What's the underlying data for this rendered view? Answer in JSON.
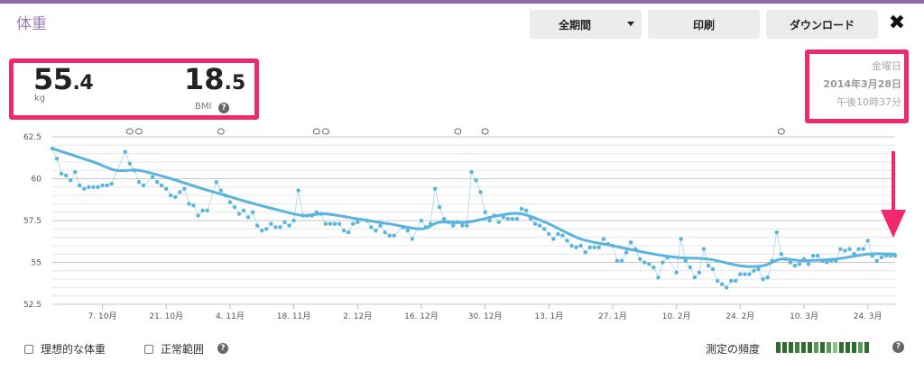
{
  "header": {
    "title": "体重",
    "period_button": "全期間",
    "print_button": "印刷",
    "download_button": "ダウンロード",
    "close_icon": "close-icon"
  },
  "summary": {
    "weight_int": "55",
    "weight_dec": ".4",
    "weight_unit": "kg",
    "bmi_int": "18",
    "bmi_dec": ".5",
    "bmi_label": "BMI",
    "help": "?"
  },
  "date": {
    "weekday": "金曜日",
    "date": "2014年3月28日",
    "time": "午後10時37分"
  },
  "legend": {
    "ideal_weight": "理想的な体重",
    "normal_range": "正常範囲",
    "help": "?",
    "frequency_label": "測定の頻度",
    "frequency_help": "?",
    "frequency_colors": [
      "#2e6b2e",
      "#2e6b2e",
      "#2e6b2e",
      "#3f7f3f",
      "#2e6b2e",
      "#2e6b2e",
      "#5c9a5c",
      "#2e6b2e",
      "#5c9a5c",
      "#8fc08f",
      "#2e6b2e",
      "#2e6b2e",
      "#2e6b2e",
      "#5c9a5c",
      "#2e6b2e"
    ]
  },
  "colors": {
    "accent": "#9b7cb8",
    "highlight": "#f0286e",
    "line": "#5ab4e0",
    "point": "#5ab4e0"
  },
  "chart_data": {
    "type": "line",
    "ylim": [
      52.5,
      62.5
    ],
    "yticks": [
      "62.5",
      "60",
      "57.5",
      "55",
      "52.5"
    ],
    "ytick_values": [
      62.5,
      60,
      57.5,
      55,
      52.5
    ],
    "x_start": "2013-09-26",
    "x_end": "2014-03-30",
    "xtick_labels": [
      "7. 10月",
      "21. 10月",
      "4. 11月",
      "18. 11月",
      "2. 12月",
      "16. 12月",
      "30. 12月",
      "13. 1月",
      "27. 1月",
      "10. 2月",
      "24. 2月",
      "10. 3月",
      "24. 3月"
    ],
    "xtick_dates": [
      "2013-10-07",
      "2013-10-21",
      "2013-11-04",
      "2013-11-18",
      "2013-12-02",
      "2013-12-16",
      "2013-12-30",
      "2014-01-13",
      "2014-01-27",
      "2014-02-10",
      "2014-02-24",
      "2014-03-10",
      "2014-03-24"
    ],
    "points": [
      [
        "2013-09-26",
        61.8
      ],
      [
        "2013-09-27",
        61.2
      ],
      [
        "2013-09-28",
        60.3
      ],
      [
        "2013-09-29",
        60.2
      ],
      [
        "2013-09-30",
        59.9
      ],
      [
        "2013-10-01",
        60.4
      ],
      [
        "2013-10-02",
        59.6
      ],
      [
        "2013-10-03",
        59.4
      ],
      [
        "2013-10-04",
        59.5
      ],
      [
        "2013-10-05",
        59.5
      ],
      [
        "2013-10-06",
        59.5
      ],
      [
        "2013-10-07",
        59.6
      ],
      [
        "2013-10-08",
        59.6
      ],
      [
        "2013-10-09",
        59.7
      ],
      [
        "2013-10-12",
        61.6
      ],
      [
        "2013-10-13",
        60.9
      ],
      [
        "2013-10-14",
        60.5
      ],
      [
        "2013-10-15",
        59.8
      ],
      [
        "2013-10-16",
        59.6
      ],
      [
        "2013-10-18",
        60.1
      ],
      [
        "2013-10-19",
        59.8
      ],
      [
        "2013-10-20",
        59.6
      ],
      [
        "2013-10-21",
        59.4
      ],
      [
        "2013-10-22",
        59.0
      ],
      [
        "2013-10-23",
        58.9
      ],
      [
        "2013-10-24",
        59.2
      ],
      [
        "2013-10-25",
        59.4
      ],
      [
        "2013-10-26",
        58.5
      ],
      [
        "2013-10-27",
        58.4
      ],
      [
        "2013-10-28",
        57.8
      ],
      [
        "2013-10-29",
        58.1
      ],
      [
        "2013-10-30",
        58.1
      ],
      [
        "2013-11-01",
        59.8
      ],
      [
        "2013-11-02",
        59.3
      ],
      [
        "2013-11-03",
        59.0
      ],
      [
        "2013-11-04",
        58.6
      ],
      [
        "2013-11-05",
        58.3
      ],
      [
        "2013-11-06",
        57.9
      ],
      [
        "2013-11-07",
        58.1
      ],
      [
        "2013-11-08",
        57.7
      ],
      [
        "2013-11-09",
        58.0
      ],
      [
        "2013-11-10",
        57.2
      ],
      [
        "2013-11-11",
        56.9
      ],
      [
        "2013-11-12",
        57.0
      ],
      [
        "2013-11-13",
        57.3
      ],
      [
        "2013-11-14",
        57.1
      ],
      [
        "2013-11-15",
        57.1
      ],
      [
        "2013-11-16",
        57.4
      ],
      [
        "2013-11-17",
        57.2
      ],
      [
        "2013-11-18",
        57.5
      ],
      [
        "2013-11-19",
        59.3
      ],
      [
        "2013-11-20",
        57.8
      ],
      [
        "2013-11-21",
        57.8
      ],
      [
        "2013-11-22",
        57.8
      ],
      [
        "2013-11-23",
        58.0
      ],
      [
        "2013-11-24",
        57.9
      ],
      [
        "2013-11-25",
        57.3
      ],
      [
        "2013-11-26",
        57.3
      ],
      [
        "2013-11-27",
        57.3
      ],
      [
        "2013-11-28",
        57.3
      ],
      [
        "2013-11-29",
        56.9
      ],
      [
        "2013-11-30",
        56.8
      ],
      [
        "2013-12-01",
        57.3
      ],
      [
        "2013-12-02",
        57.4
      ],
      [
        "2013-12-04",
        57.5
      ],
      [
        "2013-12-05",
        57.1
      ],
      [
        "2013-12-06",
        56.9
      ],
      [
        "2013-12-07",
        57.2
      ],
      [
        "2013-12-08",
        56.8
      ],
      [
        "2013-12-09",
        56.6
      ],
      [
        "2013-12-10",
        56.6
      ],
      [
        "2013-12-12",
        57.1
      ],
      [
        "2013-12-13",
        56.9
      ],
      [
        "2013-12-14",
        56.4
      ],
      [
        "2013-12-16",
        57.5
      ],
      [
        "2013-12-17",
        57.1
      ],
      [
        "2013-12-18",
        57.3
      ],
      [
        "2013-12-19",
        59.4
      ],
      [
        "2013-12-20",
        58.3
      ],
      [
        "2013-12-21",
        57.6
      ],
      [
        "2013-12-22",
        57.4
      ],
      [
        "2013-12-23",
        57.2
      ],
      [
        "2013-12-24",
        57.4
      ],
      [
        "2013-12-25",
        57.2
      ],
      [
        "2013-12-26",
        57.2
      ],
      [
        "2013-12-27",
        60.4
      ],
      [
        "2013-12-28",
        59.9
      ],
      [
        "2013-12-29",
        59.2
      ],
      [
        "2013-12-30",
        58.0
      ],
      [
        "2013-12-31",
        57.5
      ],
      [
        "2014-01-01",
        57.8
      ],
      [
        "2014-01-02",
        57.4
      ],
      [
        "2014-01-03",
        57.7
      ],
      [
        "2014-01-04",
        57.6
      ],
      [
        "2014-01-05",
        57.6
      ],
      [
        "2014-01-06",
        57.6
      ],
      [
        "2014-01-07",
        58.2
      ],
      [
        "2014-01-08",
        58.1
      ],
      [
        "2014-01-09",
        57.6
      ],
      [
        "2014-01-10",
        57.3
      ],
      [
        "2014-01-11",
        57.2
      ],
      [
        "2014-01-12",
        57.0
      ],
      [
        "2014-01-13",
        56.7
      ],
      [
        "2014-01-14",
        56.4
      ],
      [
        "2014-01-15",
        56.7
      ],
      [
        "2014-01-16",
        56.6
      ],
      [
        "2014-01-17",
        56.3
      ],
      [
        "2014-01-18",
        56.0
      ],
      [
        "2014-01-19",
        55.9
      ],
      [
        "2014-01-20",
        56.0
      ],
      [
        "2014-01-21",
        55.6
      ],
      [
        "2014-01-22",
        55.9
      ],
      [
        "2014-01-23",
        55.9
      ],
      [
        "2014-01-24",
        55.9
      ],
      [
        "2014-01-25",
        56.4
      ],
      [
        "2014-01-26",
        56.1
      ],
      [
        "2014-01-27",
        56.0
      ],
      [
        "2014-01-28",
        55.1
      ],
      [
        "2014-01-29",
        55.1
      ],
      [
        "2014-01-30",
        55.6
      ],
      [
        "2014-01-31",
        56.2
      ],
      [
        "2014-02-01",
        55.8
      ],
      [
        "2014-02-02",
        55.2
      ],
      [
        "2014-02-03",
        55.0
      ],
      [
        "2014-02-04",
        54.9
      ],
      [
        "2014-02-05",
        54.7
      ],
      [
        "2014-02-06",
        54.1
      ],
      [
        "2014-02-07",
        55.0
      ],
      [
        "2014-02-08",
        55.3
      ],
      [
        "2014-02-10",
        54.4
      ],
      [
        "2014-02-11",
        56.4
      ],
      [
        "2014-02-12",
        55.1
      ],
      [
        "2014-02-13",
        54.7
      ],
      [
        "2014-02-14",
        54.1
      ],
      [
        "2014-02-15",
        54.4
      ],
      [
        "2014-02-16",
        55.8
      ],
      [
        "2014-02-17",
        54.8
      ],
      [
        "2014-02-18",
        54.6
      ],
      [
        "2014-02-19",
        53.9
      ],
      [
        "2014-02-20",
        53.7
      ],
      [
        "2014-02-21",
        53.5
      ],
      [
        "2014-02-22",
        53.9
      ],
      [
        "2014-02-23",
        53.9
      ],
      [
        "2014-02-24",
        54.3
      ],
      [
        "2014-02-25",
        54.3
      ],
      [
        "2014-02-26",
        54.3
      ],
      [
        "2014-02-27",
        54.5
      ],
      [
        "2014-02-28",
        54.6
      ],
      [
        "2014-03-01",
        54.0
      ],
      [
        "2014-03-02",
        54.1
      ],
      [
        "2014-03-03",
        55.1
      ],
      [
        "2014-03-04",
        56.8
      ],
      [
        "2014-03-05",
        55.5
      ],
      [
        "2014-03-06",
        55.2
      ],
      [
        "2014-03-07",
        55.0
      ],
      [
        "2014-03-08",
        54.8
      ],
      [
        "2014-03-09",
        54.9
      ],
      [
        "2014-03-10",
        55.2
      ],
      [
        "2014-03-11",
        54.9
      ],
      [
        "2014-03-12",
        55.4
      ],
      [
        "2014-03-13",
        55.4
      ],
      [
        "2014-03-14",
        55.1
      ],
      [
        "2014-03-15",
        55.0
      ],
      [
        "2014-03-16",
        55.1
      ],
      [
        "2014-03-17",
        55.1
      ],
      [
        "2014-03-18",
        55.8
      ],
      [
        "2014-03-19",
        55.7
      ],
      [
        "2014-03-20",
        55.8
      ],
      [
        "2014-03-21",
        55.5
      ],
      [
        "2014-03-22",
        55.8
      ],
      [
        "2014-03-23",
        55.8
      ],
      [
        "2014-03-24",
        56.3
      ],
      [
        "2014-03-25",
        55.4
      ],
      [
        "2014-03-26",
        55.1
      ],
      [
        "2014-03-27",
        55.3
      ],
      [
        "2014-03-28",
        55.4
      ],
      [
        "2014-03-29",
        55.4
      ],
      [
        "2014-03-30",
        55.4
      ]
    ],
    "trend": [
      [
        "2013-09-26",
        61.8
      ],
      [
        "2013-10-05",
        61.0
      ],
      [
        "2013-10-10",
        60.5
      ],
      [
        "2013-10-15",
        60.5
      ],
      [
        "2013-10-22",
        60.0
      ],
      [
        "2013-10-29",
        59.4
      ],
      [
        "2013-11-03",
        59.0
      ],
      [
        "2013-11-08",
        58.6
      ],
      [
        "2013-11-15",
        58.1
      ],
      [
        "2013-11-20",
        57.8
      ],
      [
        "2013-11-25",
        57.9
      ],
      [
        "2013-12-02",
        57.6
      ],
      [
        "2013-12-09",
        57.3
      ],
      [
        "2013-12-16",
        57.0
      ],
      [
        "2013-12-20",
        57.4
      ],
      [
        "2013-12-26",
        57.4
      ],
      [
        "2014-01-02",
        57.8
      ],
      [
        "2014-01-07",
        57.9
      ],
      [
        "2014-01-13",
        57.3
      ],
      [
        "2014-01-20",
        56.4
      ],
      [
        "2014-01-27",
        56.0
      ],
      [
        "2014-02-03",
        55.6
      ],
      [
        "2014-02-10",
        55.3
      ],
      [
        "2014-02-17",
        55.2
      ],
      [
        "2014-02-24",
        54.8
      ],
      [
        "2014-03-01",
        54.8
      ],
      [
        "2014-03-05",
        55.2
      ],
      [
        "2014-03-10",
        55.1
      ],
      [
        "2014-03-17",
        55.2
      ],
      [
        "2014-03-24",
        55.5
      ],
      [
        "2014-03-30",
        55.5
      ]
    ],
    "annotation_dates": [
      "2013-10-13",
      "2013-10-15",
      "2013-11-02",
      "2013-11-23",
      "2013-11-25",
      "2013-12-24",
      "2013-12-30",
      "2014-03-05"
    ]
  }
}
